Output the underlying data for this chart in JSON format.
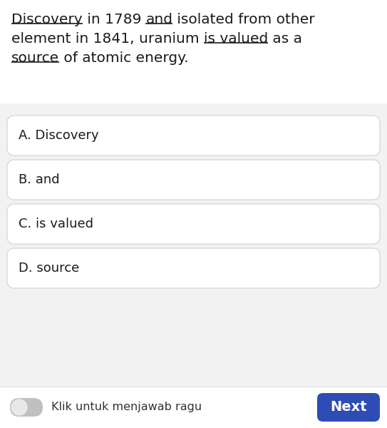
{
  "bg_color": "#f2f2f2",
  "card_color": "#ffffff",
  "options": [
    "A. Discovery",
    "B. and",
    "C. is valued",
    "D. source"
  ],
  "footer_text": "Klik untuk menjawab ragu",
  "next_button_text": "Next",
  "next_button_color": "#2d4db5",
  "next_button_text_color": "#ffffff",
  "text_color": "#1a1a1a",
  "option_border_color": "#cccccc",
  "option_bg_color": "#ffffff",
  "option_text_size": 13,
  "question_text_size": 14.5,
  "footer_bg": "#ffffff",
  "line1": [
    {
      "text": "Discovery",
      "underline": true
    },
    {
      "text": " in 1789 ",
      "underline": false
    },
    {
      "text": "and",
      "underline": true
    },
    {
      "text": " isolated from other",
      "underline": false
    }
  ],
  "line2": [
    {
      "text": "element in 1841, uranium ",
      "underline": false
    },
    {
      "text": "is valued",
      "underline": true
    },
    {
      "text": " as a",
      "underline": false
    }
  ],
  "line3": [
    {
      "text": "source",
      "underline": true
    },
    {
      "text": " of atomic energy.",
      "underline": false
    }
  ]
}
